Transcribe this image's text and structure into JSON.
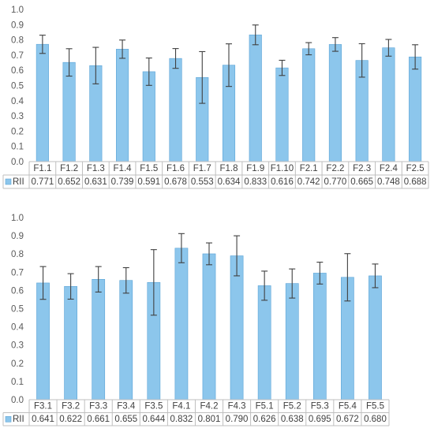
{
  "chart_data": [
    {
      "type": "bar",
      "categories": [
        "F1.1",
        "F1.2",
        "F1.3",
        "F1.4",
        "F1.5",
        "F1.6",
        "F1.7",
        "F1.8",
        "F1.9",
        "F1.10",
        "F2.1",
        "F2.2",
        "F2.3",
        "F2.4",
        "F2.5"
      ],
      "series": [
        {
          "name": "RII",
          "values": [
            0.771,
            0.652,
            0.631,
            0.739,
            0.591,
            0.678,
            0.553,
            0.634,
            0.833,
            0.616,
            0.742,
            0.77,
            0.665,
            0.748,
            0.688
          ],
          "value_labels": [
            "0.771",
            "0.652",
            "0.631",
            "0.739",
            "0.591",
            "0.678",
            "0.553",
            "0.634",
            "0.833",
            "0.616",
            "0.742",
            "0.770",
            "0.665",
            "0.748",
            "0.688"
          ],
          "error": [
            0.06,
            0.09,
            0.12,
            0.06,
            0.09,
            0.065,
            0.17,
            0.14,
            0.065,
            0.05,
            0.04,
            0.045,
            0.11,
            0.055,
            0.08
          ]
        }
      ],
      "ylim": [
        0,
        1.0
      ],
      "yticks": [
        "0.0",
        "0.1",
        "0.2",
        "0.3",
        "0.4",
        "0.5",
        "0.6",
        "0.7",
        "0.8",
        "0.9",
        "1.0"
      ],
      "grid": false,
      "legend": "data-table-left",
      "colors": {
        "bar": "#8cc6ec",
        "bar_edge": "#5ba3d6",
        "error": "#404040",
        "axis": "#bfbfbf"
      }
    },
    {
      "type": "bar",
      "categories": [
        "F3.1",
        "F3.2",
        "F3.3",
        "F3.4",
        "F3.5",
        "F4.1",
        "F4.2",
        "F4.3",
        "F5.1",
        "F5.2",
        "F5.3",
        "F5.4",
        "F5.5"
      ],
      "series": [
        {
          "name": "RII",
          "values": [
            0.641,
            0.622,
            0.661,
            0.655,
            0.644,
            0.832,
            0.801,
            0.79,
            0.626,
            0.638,
            0.695,
            0.672,
            0.68
          ],
          "value_labels": [
            "0.641",
            "0.622",
            "0.661",
            "0.655",
            "0.644",
            "0.832",
            "0.801",
            "0.790",
            "0.626",
            "0.638",
            "0.695",
            "0.672",
            "0.680"
          ],
          "error": [
            0.09,
            0.07,
            0.07,
            0.07,
            0.18,
            0.08,
            0.06,
            0.11,
            0.08,
            0.08,
            0.06,
            0.13,
            0.065
          ]
        }
      ],
      "ylim": [
        0,
        1.0
      ],
      "yticks": [
        "0.0",
        "0.1",
        "0.2",
        "0.3",
        "0.4",
        "0.5",
        "0.6",
        "0.7",
        "0.8",
        "0.9",
        "1.0"
      ],
      "grid": false,
      "legend": "data-table-left",
      "colors": {
        "bar": "#8cc6ec",
        "bar_edge": "#5ba3d6",
        "error": "#404040",
        "axis": "#bfbfbf"
      }
    }
  ]
}
